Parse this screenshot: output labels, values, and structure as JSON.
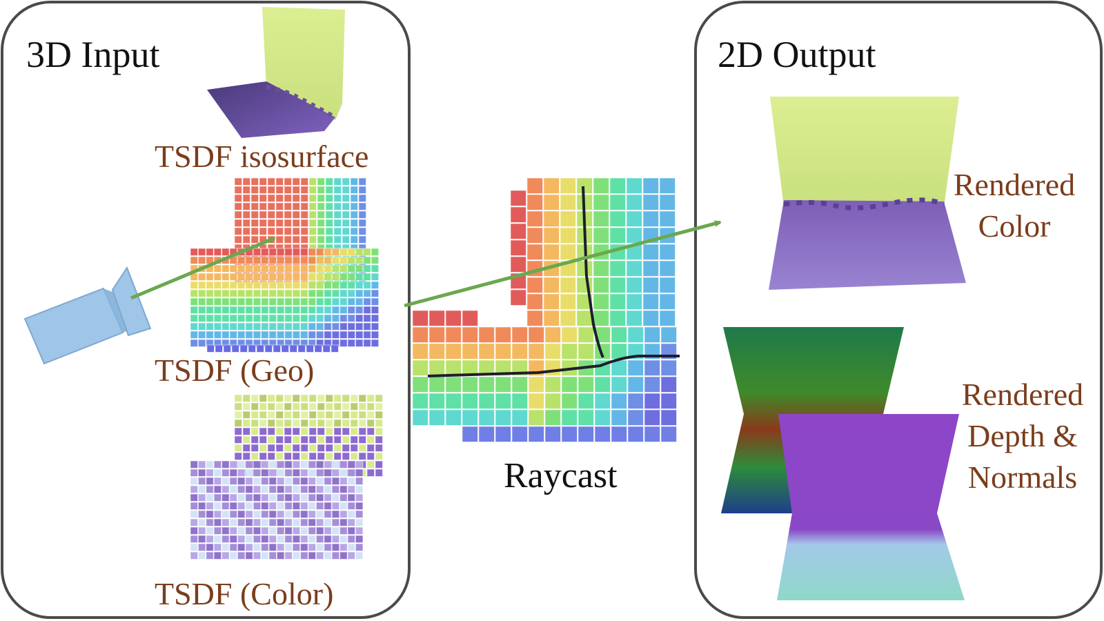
{
  "input_panel": {
    "title": "3D Input",
    "iso_label": "TSDF isosurface",
    "geo_label": "TSDF (Geo)",
    "color_label": "TSDF (Color)"
  },
  "raycast": {
    "label": "Raycast"
  },
  "output_panel": {
    "title": "2D Output",
    "rendered_color": [
      "Rendered",
      "Color"
    ],
    "rendered_depth": [
      "Rendered",
      "Depth &",
      "Normals"
    ]
  },
  "colors": {
    "label": "#7a3d1c",
    "panel_border": "#4a4a4a",
    "arrow": "#6aa84f",
    "camera": "#9fc5e8",
    "wall": "#d6ea8a",
    "floor": "#8f72c9"
  }
}
